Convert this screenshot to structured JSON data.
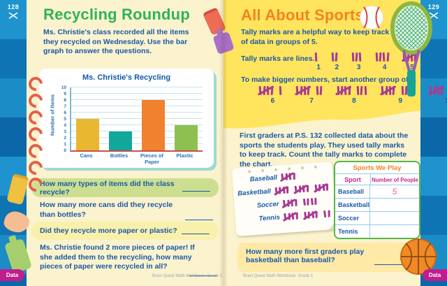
{
  "book": {
    "footer": "Brain Quest Math Workbook: Grade 1"
  },
  "left_page": {
    "page_number": "128",
    "tab_label": "Data",
    "title": "Recycling Roundup",
    "intro": "Ms. Christie's class recorded all the items they recycled on Wednesday. Use the bar graph to answer the questions.",
    "questions": [
      {
        "text": "How many types of items did the class recycle?"
      },
      {
        "text": "How many more cans did they recycle than bottles?"
      },
      {
        "text": "Did they recycle more paper or plastic?"
      },
      {
        "text": "Ms. Christie found 2 more pieces of paper! If she added them to the recycling, how many pieces of paper were recycled in all?"
      }
    ]
  },
  "chart_data": [
    {
      "type": "bar",
      "title": "Ms. Christie's Recycling",
      "xlabel": "",
      "ylabel": "Number of Items",
      "categories": [
        "Cans",
        "Bottles",
        "Pieces of Paper",
        "Plastic"
      ],
      "values": [
        5,
        3,
        8,
        4
      ],
      "bar_colors": [
        "#E9B730",
        "#12A79B",
        "#F0812F",
        "#8EC04F"
      ],
      "ylim": [
        0,
        10
      ],
      "ytick_step": 1,
      "grid": true,
      "legend": "none"
    },
    {
      "type": "table",
      "title": "Sports We Play",
      "columns": [
        "Sport",
        "Number of People"
      ],
      "rows": [
        {
          "sport": "Baseball",
          "value": "5"
        },
        {
          "sport": "Basketball",
          "value": ""
        },
        {
          "sport": "Soccer",
          "value": ""
        },
        {
          "sport": "Tennis",
          "value": ""
        }
      ]
    }
  ],
  "right_page": {
    "page_number": "129",
    "tab_label": "Data",
    "title": "All About Sports",
    "intro_bold": "Tally marks",
    "intro_rest": " are a helpful way to keep track of data in groups of 5.",
    "lines_label": "Tally marks are lines.",
    "tally_numbers_row1": [
      1,
      2,
      3,
      4,
      5
    ],
    "bigger_label": "To make bigger numbers, start another group of 5.",
    "tally_numbers_row2": [
      6,
      7,
      8,
      9,
      10
    ],
    "paragraph": "First graders at P.S. 132 collected data about the sports the students play. They used tally marks to keep track. Count the tally marks to complete the chart.",
    "note": {
      "rows": [
        {
          "sport": "Baseball",
          "tally": 5
        },
        {
          "sport": "Basketball",
          "tally": 15
        },
        {
          "sport": "Soccer",
          "tally": 9
        },
        {
          "sport": "Tennis",
          "tally": 12
        }
      ]
    },
    "question": "How many more first graders play basketball than baseball?"
  },
  "colors": {
    "left_title": "#2FB457",
    "right_title": "#F5821F",
    "body_text": "#1A5AA5",
    "tally": "#A93A92",
    "table_border": "#54B947",
    "table_header": "#C9258F",
    "handwritten_answer": "#F06292",
    "data_tab": "#BE1E8E",
    "page_bg": "#FBF2CE",
    "yellow_section": "#FFE45E"
  }
}
